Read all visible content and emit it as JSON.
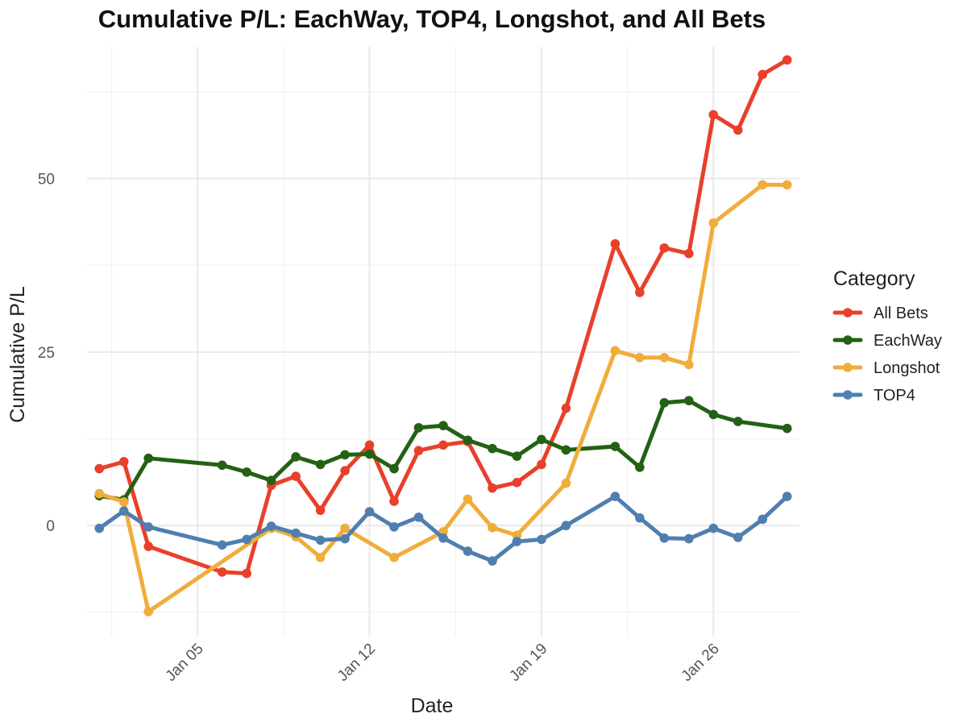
{
  "chart_data": {
    "type": "line",
    "title": "Cumulative P/L: EachWay, TOP4, Longshot, and All Bets",
    "xlabel": "Date",
    "ylabel": "Cumulative P/L",
    "x_ticks": [
      "2025-01-05",
      "2025-01-12",
      "2025-01-19",
      "2025-01-26"
    ],
    "x_tick_labels": [
      "Jan 05",
      "Jan 12",
      "Jan 19",
      "Jan 26"
    ],
    "y_ticks": [
      0,
      25,
      50
    ],
    "xlim": [
      "2024-12-31T12:00:00",
      "2025-01-29T12:00:00"
    ],
    "ylim": [
      -16,
      69
    ],
    "grid": true,
    "legend": {
      "title": "Category",
      "position": "right"
    },
    "series": [
      {
        "name": "All Bets",
        "color": "#e8402a",
        "points": [
          {
            "x": "2025-01-01",
            "y": 8.2
          },
          {
            "x": "2025-01-02",
            "y": 9.2
          },
          {
            "x": "2025-01-03",
            "y": -3.0
          },
          {
            "x": "2025-01-06",
            "y": -6.7
          },
          {
            "x": "2025-01-07",
            "y": -6.9
          },
          {
            "x": "2025-01-08",
            "y": 5.8
          },
          {
            "x": "2025-01-09",
            "y": 7.1
          },
          {
            "x": "2025-01-10",
            "y": 2.2
          },
          {
            "x": "2025-01-11",
            "y": 7.9
          },
          {
            "x": "2025-01-12",
            "y": 11.6
          },
          {
            "x": "2025-01-13",
            "y": 3.5
          },
          {
            "x": "2025-01-14",
            "y": 10.8
          },
          {
            "x": "2025-01-15",
            "y": 11.6
          },
          {
            "x": "2025-01-16",
            "y": 12.1
          },
          {
            "x": "2025-01-17",
            "y": 5.4
          },
          {
            "x": "2025-01-18",
            "y": 6.2
          },
          {
            "x": "2025-01-19",
            "y": 8.8
          },
          {
            "x": "2025-01-20",
            "y": 16.9
          },
          {
            "x": "2025-01-22",
            "y": 40.6
          },
          {
            "x": "2025-01-23",
            "y": 33.6
          },
          {
            "x": "2025-01-24",
            "y": 40.0
          },
          {
            "x": "2025-01-25",
            "y": 39.2
          },
          {
            "x": "2025-01-26",
            "y": 59.2
          },
          {
            "x": "2025-01-27",
            "y": 57.0
          },
          {
            "x": "2025-01-28",
            "y": 65.0
          },
          {
            "x": "2025-01-29",
            "y": 67.1
          }
        ]
      },
      {
        "name": "EachWay",
        "color": "#236114",
        "points": [
          {
            "x": "2025-01-01",
            "y": 4.3
          },
          {
            "x": "2025-01-02",
            "y": 3.7
          },
          {
            "x": "2025-01-03",
            "y": 9.7
          },
          {
            "x": "2025-01-06",
            "y": 8.7
          },
          {
            "x": "2025-01-07",
            "y": 7.7
          },
          {
            "x": "2025-01-08",
            "y": 6.5
          },
          {
            "x": "2025-01-09",
            "y": 9.9
          },
          {
            "x": "2025-01-10",
            "y": 8.8
          },
          {
            "x": "2025-01-11",
            "y": 10.2
          },
          {
            "x": "2025-01-12",
            "y": 10.3
          },
          {
            "x": "2025-01-13",
            "y": 8.2
          },
          {
            "x": "2025-01-14",
            "y": 14.1
          },
          {
            "x": "2025-01-15",
            "y": 14.4
          },
          {
            "x": "2025-01-16",
            "y": 12.3
          },
          {
            "x": "2025-01-17",
            "y": 11.1
          },
          {
            "x": "2025-01-18",
            "y": 10.0
          },
          {
            "x": "2025-01-19",
            "y": 12.4
          },
          {
            "x": "2025-01-20",
            "y": 10.9
          },
          {
            "x": "2025-01-22",
            "y": 11.4
          },
          {
            "x": "2025-01-23",
            "y": 8.4
          },
          {
            "x": "2025-01-24",
            "y": 17.7
          },
          {
            "x": "2025-01-25",
            "y": 18.0
          },
          {
            "x": "2025-01-26",
            "y": 16.0
          },
          {
            "x": "2025-01-27",
            "y": 15.0
          },
          {
            "x": "2025-01-29",
            "y": 14.0
          }
        ]
      },
      {
        "name": "Longshot",
        "color": "#f0ad3a",
        "points": [
          {
            "x": "2025-01-01",
            "y": 4.6
          },
          {
            "x": "2025-01-02",
            "y": 3.4
          },
          {
            "x": "2025-01-03",
            "y": -12.4
          },
          {
            "x": "2025-01-08",
            "y": -0.4
          },
          {
            "x": "2025-01-09",
            "y": -1.6
          },
          {
            "x": "2025-01-10",
            "y": -4.6
          },
          {
            "x": "2025-01-11",
            "y": -0.4
          },
          {
            "x": "2025-01-13",
            "y": -4.6
          },
          {
            "x": "2025-01-15",
            "y": -0.9
          },
          {
            "x": "2025-01-16",
            "y": 3.8
          },
          {
            "x": "2025-01-17",
            "y": -0.3
          },
          {
            "x": "2025-01-18",
            "y": -1.4
          },
          {
            "x": "2025-01-20",
            "y": 6.1
          },
          {
            "x": "2025-01-22",
            "y": 25.2
          },
          {
            "x": "2025-01-23",
            "y": 24.2
          },
          {
            "x": "2025-01-24",
            "y": 24.2
          },
          {
            "x": "2025-01-25",
            "y": 23.2
          },
          {
            "x": "2025-01-26",
            "y": 43.6
          },
          {
            "x": "2025-01-28",
            "y": 49.1
          },
          {
            "x": "2025-01-29",
            "y": 49.1
          }
        ]
      },
      {
        "name": "TOP4",
        "color": "#4f7faf",
        "points": [
          {
            "x": "2025-01-01",
            "y": -0.4
          },
          {
            "x": "2025-01-02",
            "y": 2.1
          },
          {
            "x": "2025-01-03",
            "y": -0.2
          },
          {
            "x": "2025-01-06",
            "y": -2.8
          },
          {
            "x": "2025-01-07",
            "y": -2.0
          },
          {
            "x": "2025-01-08",
            "y": -0.1
          },
          {
            "x": "2025-01-09",
            "y": -1.1
          },
          {
            "x": "2025-01-10",
            "y": -2.1
          },
          {
            "x": "2025-01-11",
            "y": -1.9
          },
          {
            "x": "2025-01-12",
            "y": 2.0
          },
          {
            "x": "2025-01-13",
            "y": -0.2
          },
          {
            "x": "2025-01-14",
            "y": 1.2
          },
          {
            "x": "2025-01-15",
            "y": -1.8
          },
          {
            "x": "2025-01-16",
            "y": -3.7
          },
          {
            "x": "2025-01-17",
            "y": -5.1
          },
          {
            "x": "2025-01-18",
            "y": -2.3
          },
          {
            "x": "2025-01-19",
            "y": -2.0
          },
          {
            "x": "2025-01-20",
            "y": 0.0
          },
          {
            "x": "2025-01-22",
            "y": 4.2
          },
          {
            "x": "2025-01-23",
            "y": 1.1
          },
          {
            "x": "2025-01-24",
            "y": -1.8
          },
          {
            "x": "2025-01-25",
            "y": -1.9
          },
          {
            "x": "2025-01-26",
            "y": -0.4
          },
          {
            "x": "2025-01-27",
            "y": -1.7
          },
          {
            "x": "2025-01-28",
            "y": 0.9
          },
          {
            "x": "2025-01-29",
            "y": 4.2
          }
        ]
      }
    ]
  }
}
